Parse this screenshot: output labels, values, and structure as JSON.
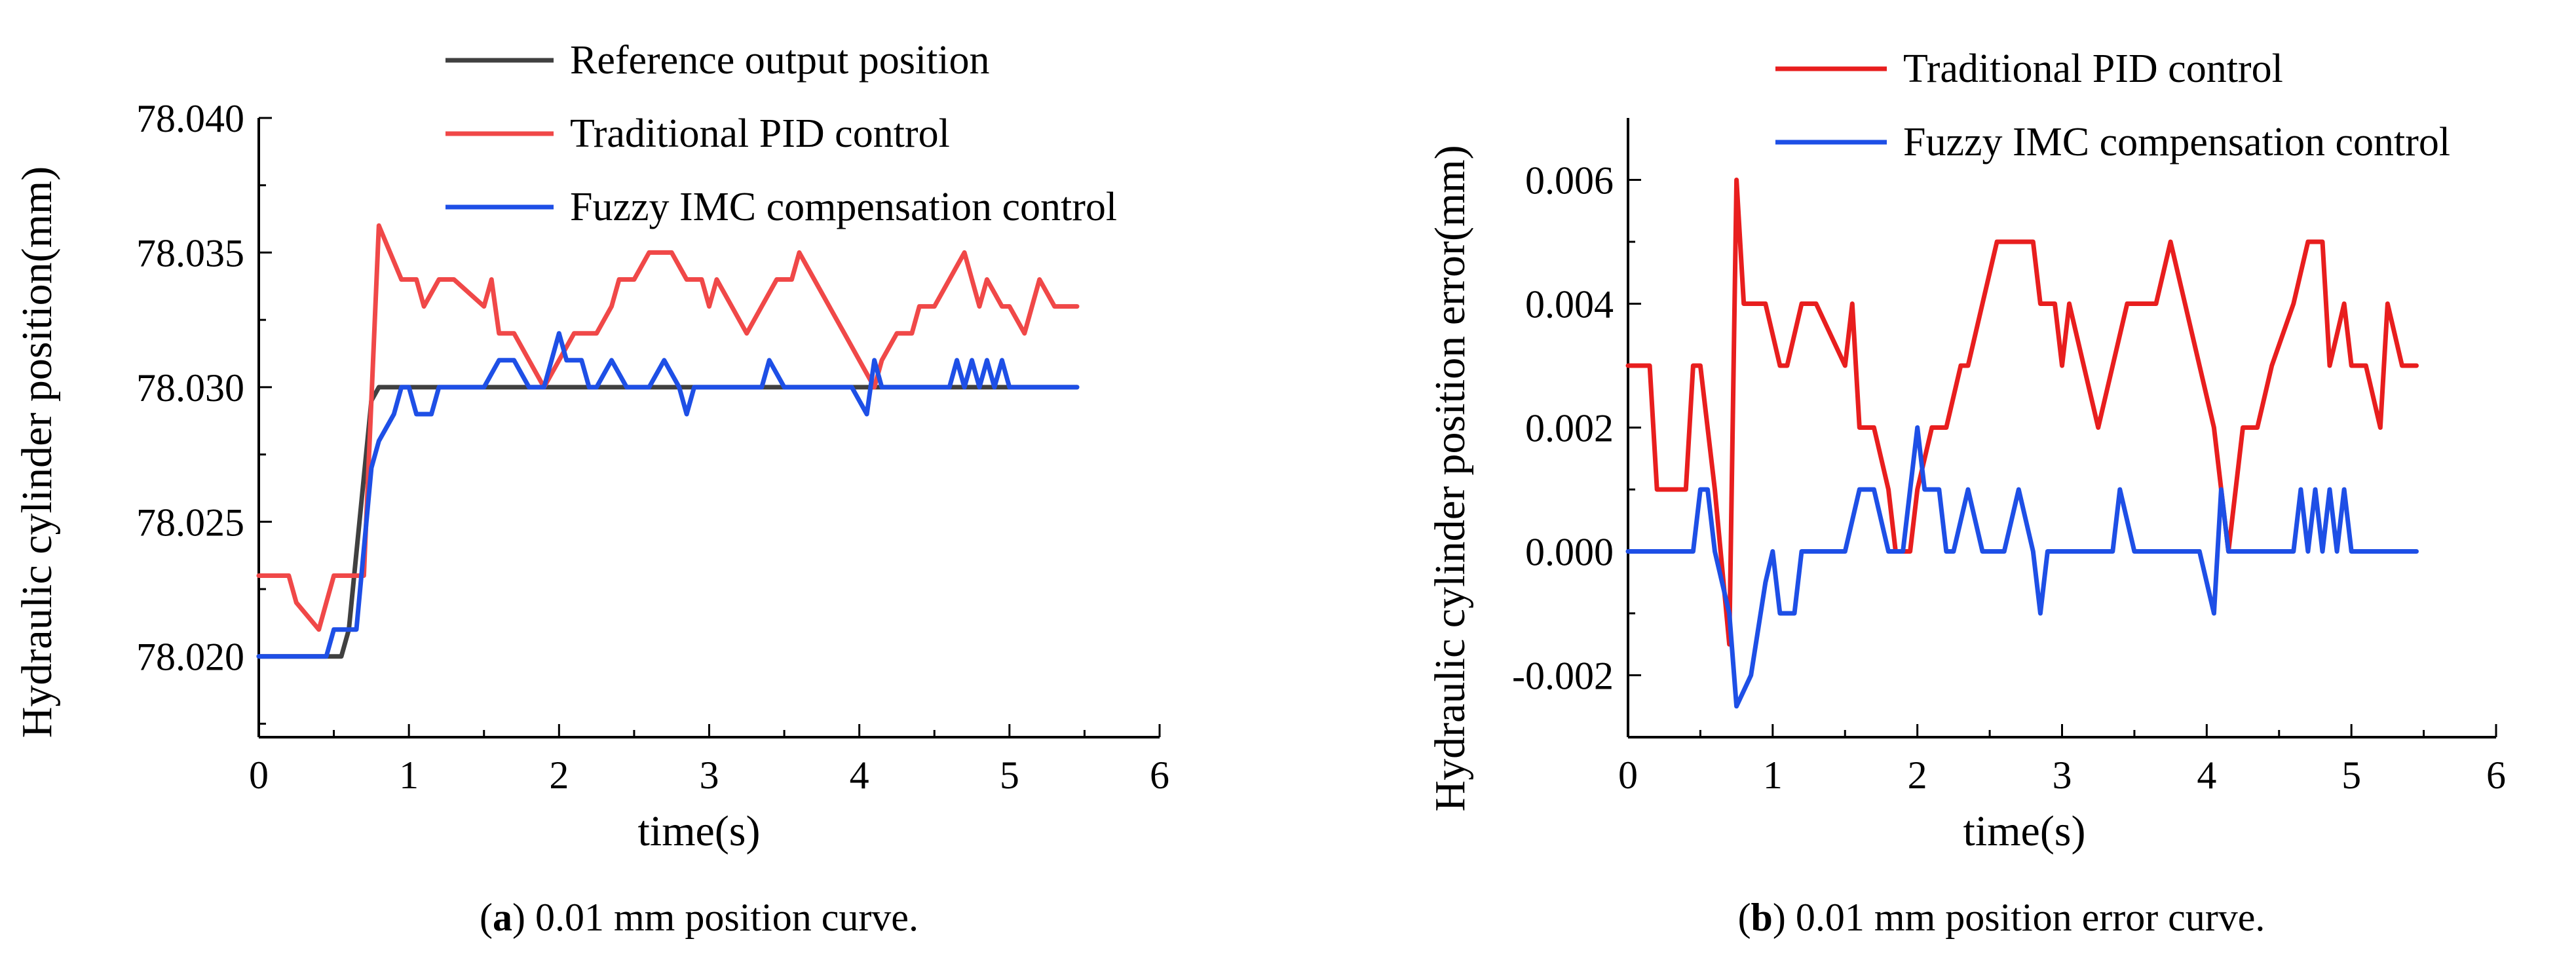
{
  "chart_data": [
    {
      "type": "line",
      "panel": "a",
      "caption_label": "a",
      "caption_text": " 0.01 mm position curve.",
      "xlabel": "time(s)",
      "ylabel": "Hydraulic cylinder position(mm)",
      "xlim": [
        0,
        6
      ],
      "ylim": [
        78.017,
        78.04
      ],
      "xticks": [
        0,
        1,
        2,
        3,
        4,
        5,
        6
      ],
      "xtick_labels": [
        "0",
        "1",
        "2",
        "3",
        "4",
        "5",
        "6"
      ],
      "yticks": [
        78.02,
        78.025,
        78.03,
        78.035,
        78.04
      ],
      "ytick_labels": [
        "78.020",
        "78.025",
        "78.030",
        "78.035",
        "78.040"
      ],
      "legend_position": "top",
      "series": [
        {
          "name": "Reference output position",
          "color": "#404040",
          "x": [
            0,
            0.55,
            0.6,
            0.75,
            0.8,
            5.45
          ],
          "y": [
            78.02,
            78.02,
            78.021,
            78.0295,
            78.03,
            78.03
          ]
        },
        {
          "name": "Traditional PID control",
          "color": "#f04848",
          "x": [
            0,
            0.2,
            0.25,
            0.4,
            0.45,
            0.5,
            0.7,
            0.8,
            0.95,
            1.05,
            1.1,
            1.2,
            1.3,
            1.5,
            1.55,
            1.6,
            1.7,
            1.8,
            1.9,
            2.0,
            2.1,
            2.25,
            2.35,
            2.4,
            2.5,
            2.6,
            2.75,
            2.85,
            2.95,
            3.0,
            3.05,
            3.15,
            3.25,
            3.35,
            3.45,
            3.55,
            3.6,
            3.7,
            3.8,
            3.9,
            4.0,
            4.1,
            4.15,
            4.25,
            4.35,
            4.4,
            4.5,
            4.6,
            4.7,
            4.8,
            4.85,
            4.95,
            5.0,
            5.1,
            5.2,
            5.3,
            5.35,
            5.45
          ],
          "y": [
            78.023,
            78.023,
            78.022,
            78.021,
            78.022,
            78.023,
            78.023,
            78.036,
            78.034,
            78.034,
            78.033,
            78.034,
            78.034,
            78.033,
            78.034,
            78.032,
            78.032,
            78.031,
            78.03,
            78.031,
            78.032,
            78.032,
            78.033,
            78.034,
            78.034,
            78.035,
            78.035,
            78.034,
            78.034,
            78.033,
            78.034,
            78.033,
            78.032,
            78.033,
            78.034,
            78.034,
            78.035,
            78.034,
            78.033,
            78.032,
            78.031,
            78.03,
            78.031,
            78.032,
            78.032,
            78.033,
            78.033,
            78.034,
            78.035,
            78.033,
            78.034,
            78.033,
            78.033,
            78.032,
            78.034,
            78.033,
            78.033,
            78.033
          ]
        },
        {
          "name": "Fuzzy IMC compensation control",
          "color": "#1e4fe6",
          "x": [
            0,
            0.45,
            0.5,
            0.55,
            0.6,
            0.65,
            0.75,
            0.8,
            0.9,
            0.95,
            1.0,
            1.05,
            1.15,
            1.2,
            1.5,
            1.6,
            1.7,
            1.8,
            1.9,
            2.0,
            2.05,
            2.15,
            2.2,
            2.25,
            2.35,
            2.45,
            2.6,
            2.7,
            2.8,
            2.85,
            2.9,
            3.0,
            3.35,
            3.4,
            3.5,
            3.95,
            4.05,
            4.1,
            4.15,
            4.2,
            4.6,
            4.65,
            4.7,
            4.75,
            4.8,
            4.85,
            4.9,
            4.95,
            5.0,
            5.05,
            5.45
          ],
          "y": [
            78.02,
            78.02,
            78.021,
            78.021,
            78.021,
            78.021,
            78.027,
            78.028,
            78.029,
            78.03,
            78.03,
            78.029,
            78.029,
            78.03,
            78.03,
            78.031,
            78.031,
            78.03,
            78.03,
            78.032,
            78.031,
            78.031,
            78.03,
            78.03,
            78.031,
            78.03,
            78.03,
            78.031,
            78.03,
            78.029,
            78.03,
            78.03,
            78.03,
            78.031,
            78.03,
            78.03,
            78.029,
            78.031,
            78.03,
            78.03,
            78.03,
            78.031,
            78.03,
            78.031,
            78.03,
            78.031,
            78.03,
            78.031,
            78.03,
            78.03,
            78.03
          ]
        }
      ]
    },
    {
      "type": "line",
      "panel": "b",
      "caption_label": "b",
      "caption_text": " 0.01 mm position error curve.",
      "xlabel": "time(s)",
      "ylabel": "Hydraulic cylinder position error(mm)",
      "xlim": [
        0,
        6
      ],
      "ylim": [
        -0.003,
        0.007
      ],
      "xticks": [
        0,
        1,
        2,
        3,
        4,
        5,
        6
      ],
      "xtick_labels": [
        "0",
        "1",
        "2",
        "3",
        "4",
        "5",
        "6"
      ],
      "yticks": [
        -0.002,
        0,
        0.002,
        0.004,
        0.006
      ],
      "ytick_labels": [
        "-0.002",
        "0.000",
        "0.002",
        "0.004",
        "0.006"
      ],
      "legend_position": "top",
      "series": [
        {
          "name": "Traditional PID control",
          "color": "#e81e1e",
          "x": [
            0,
            0.15,
            0.2,
            0.4,
            0.45,
            0.5,
            0.6,
            0.7,
            0.75,
            0.8,
            0.95,
            1.05,
            1.1,
            1.2,
            1.3,
            1.5,
            1.55,
            1.6,
            1.7,
            1.8,
            1.85,
            1.95,
            2.0,
            2.1,
            2.2,
            2.3,
            2.35,
            2.45,
            2.55,
            2.6,
            2.8,
            2.85,
            2.95,
            3.0,
            3.05,
            3.15,
            3.25,
            3.35,
            3.45,
            3.55,
            3.65,
            3.75,
            3.85,
            3.95,
            4.05,
            4.15,
            4.25,
            4.35,
            4.45,
            4.6,
            4.7,
            4.8,
            4.85,
            4.95,
            5.0,
            5.1,
            5.2,
            5.25,
            5.35,
            5.45
          ],
          "y": [
            0.003,
            0.003,
            0.001,
            0.001,
            0.003,
            0.003,
            0.001,
            -0.0015,
            0.006,
            0.004,
            0.004,
            0.003,
            0.003,
            0.004,
            0.004,
            0.003,
            0.004,
            0.002,
            0.002,
            0.001,
            0.0,
            0.0,
            0.001,
            0.002,
            0.002,
            0.003,
            0.003,
            0.004,
            0.005,
            0.005,
            0.005,
            0.004,
            0.004,
            0.003,
            0.004,
            0.003,
            0.002,
            0.003,
            0.004,
            0.004,
            0.004,
            0.005,
            0.004,
            0.003,
            0.002,
            0.0,
            0.002,
            0.002,
            0.003,
            0.004,
            0.005,
            0.005,
            0.003,
            0.004,
            0.003,
            0.003,
            0.002,
            0.004,
            0.003,
            0.003
          ]
        },
        {
          "name": "Fuzzy IMC compensation control",
          "color": "#1e4fe6",
          "x": [
            0,
            0.45,
            0.5,
            0.55,
            0.6,
            0.7,
            0.75,
            0.85,
            0.95,
            1.0,
            1.05,
            1.15,
            1.2,
            1.5,
            1.6,
            1.7,
            1.8,
            1.9,
            2.0,
            2.05,
            2.15,
            2.2,
            2.25,
            2.35,
            2.45,
            2.6,
            2.7,
            2.8,
            2.85,
            2.9,
            3.0,
            3.35,
            3.4,
            3.5,
            3.95,
            4.05,
            4.1,
            4.15,
            4.2,
            4.6,
            4.65,
            4.7,
            4.75,
            4.8,
            4.85,
            4.9,
            4.95,
            5.0,
            5.05,
            5.45
          ],
          "y": [
            0.0,
            0.0,
            0.001,
            0.001,
            0.0,
            -0.001,
            -0.0025,
            -0.002,
            -0.0005,
            0.0,
            -0.001,
            -0.001,
            0.0,
            0.0,
            0.001,
            0.001,
            0.0,
            0.0,
            0.002,
            0.001,
            0.001,
            0.0,
            0.0,
            0.001,
            0.0,
            0.0,
            0.001,
            0.0,
            -0.001,
            0.0,
            0.0,
            0.0,
            0.001,
            0.0,
            0.0,
            -0.001,
            0.001,
            0.0,
            0.0,
            0.0,
            0.001,
            0.0,
            0.001,
            0.0,
            0.001,
            0.0,
            0.001,
            0.0,
            0.0,
            0.0
          ]
        }
      ]
    }
  ]
}
